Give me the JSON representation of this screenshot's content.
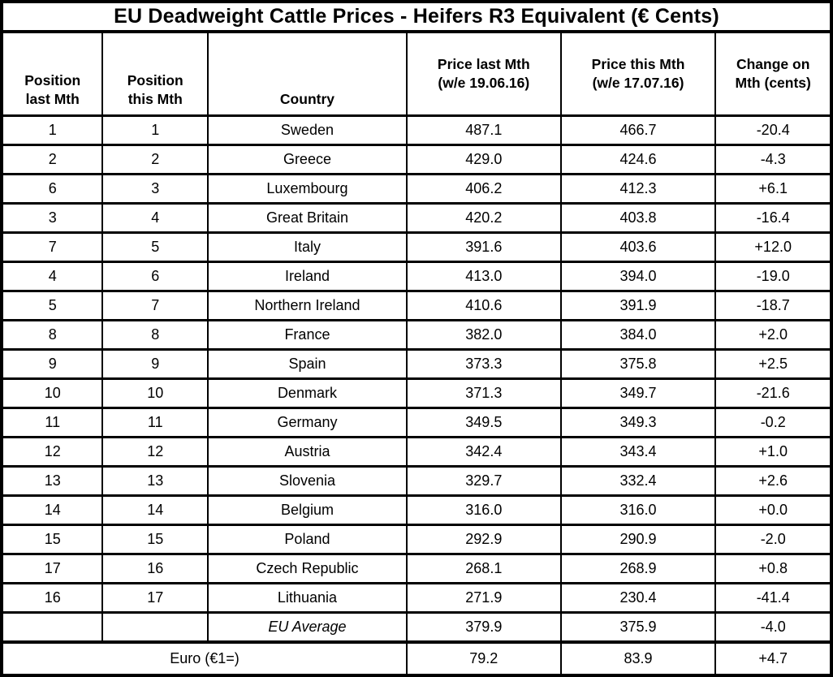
{
  "colors": {
    "background": "#ffffff",
    "text": "#000000",
    "border": "#000000"
  },
  "header_display": [
    "Position\nlast Mth",
    "Position\nthis Mth",
    "Country",
    "Price last Mth\n(w/e 19.06.16)",
    "Price this Mth\n(w/e 17.07.16)",
    "Change on\nMth (cents)"
  ],
  "chart_data": {
    "type": "table",
    "title": "EU Deadweight Cattle Prices - Heifers R3 Equivalent (€ Cents)",
    "columns": [
      "Position last Mth",
      "Position this Mth",
      "Country",
      "Price last Mth (w/e 19.06.16)",
      "Price this Mth (w/e 17.07.16)",
      "Change on Mth (cents)"
    ],
    "rows": [
      [
        "1",
        "1",
        "Sweden",
        "487.1",
        "466.7",
        "-20.4"
      ],
      [
        "2",
        "2",
        "Greece",
        "429.0",
        "424.6",
        "-4.3"
      ],
      [
        "6",
        "3",
        "Luxembourg",
        "406.2",
        "412.3",
        "+6.1"
      ],
      [
        "3",
        "4",
        "Great Britain",
        "420.2",
        "403.8",
        "-16.4"
      ],
      [
        "7",
        "5",
        "Italy",
        "391.6",
        "403.6",
        "+12.0"
      ],
      [
        "4",
        "6",
        "Ireland",
        "413.0",
        "394.0",
        "-19.0"
      ],
      [
        "5",
        "7",
        "Northern Ireland",
        "410.6",
        "391.9",
        "-18.7"
      ],
      [
        "8",
        "8",
        "France",
        "382.0",
        "384.0",
        "+2.0"
      ],
      [
        "9",
        "9",
        "Spain",
        "373.3",
        "375.8",
        "+2.5"
      ],
      [
        "10",
        "10",
        "Denmark",
        "371.3",
        "349.7",
        "-21.6"
      ],
      [
        "11",
        "11",
        "Germany",
        "349.5",
        "349.3",
        "-0.2"
      ],
      [
        "12",
        "12",
        "Austria",
        "342.4",
        "343.4",
        "+1.0"
      ],
      [
        "13",
        "13",
        "Slovenia",
        "329.7",
        "332.4",
        "+2.6"
      ],
      [
        "14",
        "14",
        "Belgium",
        "316.0",
        "316.0",
        "+0.0"
      ],
      [
        "15",
        "15",
        "Poland",
        "292.9",
        "290.9",
        "-2.0"
      ],
      [
        "17",
        "16",
        "Czech Republic",
        "268.1",
        "268.9",
        "+0.8"
      ],
      [
        "16",
        "17",
        "Lithuania",
        "271.9",
        "230.4",
        "-41.4"
      ]
    ],
    "footer": {
      "eu_average": {
        "pos_last": "",
        "pos_this": "",
        "label": "EU Average",
        "price_last": "379.9",
        "price_this": "375.9",
        "change": "-4.0"
      },
      "euro": {
        "label": "Euro (€1=)",
        "price_last": "79.2",
        "price_this": "83.9",
        "change": "+4.7"
      }
    }
  }
}
